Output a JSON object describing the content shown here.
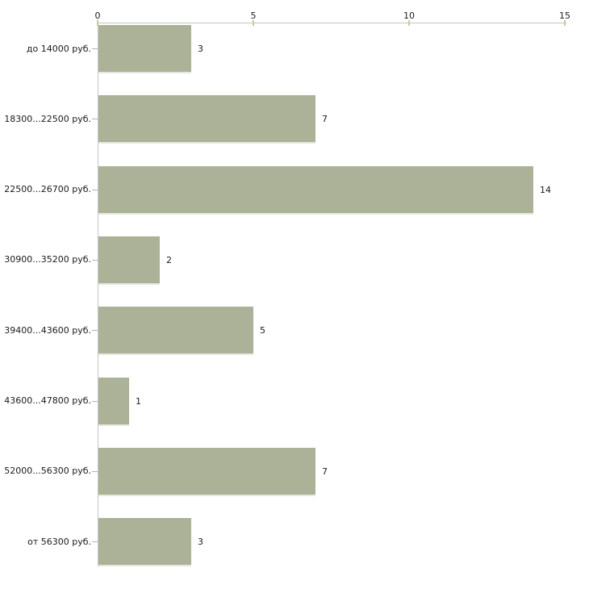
{
  "chart_data": {
    "type": "bar",
    "orientation": "horizontal",
    "title": "",
    "categories": [
      "до 14000 руб.",
      "18300...22500 руб.",
      "22500...26700 руб.",
      "30900...35200 руб.",
      "39400...43600 руб.",
      "43600...47800 руб.",
      "52000...56300 руб.",
      "от 56300 руб."
    ],
    "values": [
      3,
      7,
      14,
      2,
      5,
      1,
      7,
      3
    ],
    "x_axis": {
      "position": "top",
      "min": 0,
      "max": 15,
      "ticks": [
        0,
        5,
        10,
        15
      ]
    },
    "grid": false,
    "legend": false,
    "colors": {
      "bar": "#acb297",
      "bar_bottom_edge": "#e6e8df",
      "axis_line": "#c5c5c5",
      "x_tick": "#c9caa5",
      "y_tick": "#b2b2b2",
      "text": "#1a1a1a",
      "background": "#ffffff"
    }
  }
}
